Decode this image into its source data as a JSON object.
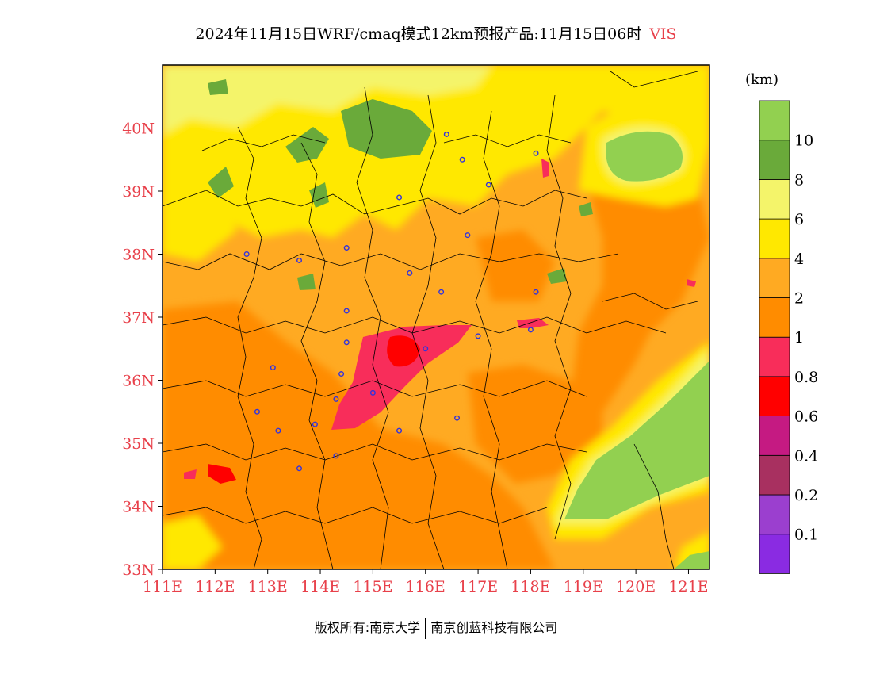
{
  "title": {
    "text": "2024年11月15日WRF/cmaq模式12km预报产品:11月15日06时",
    "variable": "VIS"
  },
  "colorbar": {
    "unit": "(km)",
    "colors": [
      "#8a2be2",
      "#9b3fcf",
      "#a83060",
      "#c51a82",
      "#ff0000",
      "#f82d5a",
      "#ff8c00",
      "#ffaa22",
      "#ffe800",
      "#f4f46a",
      "#6aaa3a",
      "#92d050"
    ],
    "tick_labels": [
      "0.1",
      "0.2",
      "0.4",
      "0.6",
      "0.8",
      "1",
      "2",
      "4",
      "6",
      "8",
      "10"
    ]
  },
  "axes": {
    "x_ticks": [
      "111E",
      "112E",
      "113E",
      "114E",
      "115E",
      "116E",
      "117E",
      "118E",
      "119E",
      "120E",
      "121E"
    ],
    "y_ticks": [
      "33N",
      "34N",
      "35N",
      "36N",
      "37N",
      "38N",
      "39N",
      "40N"
    ],
    "lon_range": [
      111,
      121.4
    ],
    "lat_range": [
      33,
      41
    ],
    "tick_color": "#e8404a"
  },
  "stations": [
    {
      "lon": 112.6,
      "lat": 38.0
    },
    {
      "lon": 113.6,
      "lat": 37.9
    },
    {
      "lon": 114.5,
      "lat": 38.1
    },
    {
      "lon": 115.5,
      "lat": 38.9
    },
    {
      "lon": 116.4,
      "lat": 39.9
    },
    {
      "lon": 116.7,
      "lat": 39.5
    },
    {
      "lon": 117.2,
      "lat": 39.1
    },
    {
      "lon": 116.8,
      "lat": 38.3
    },
    {
      "lon": 115.7,
      "lat": 37.7
    },
    {
      "lon": 116.3,
      "lat": 37.4
    },
    {
      "lon": 114.5,
      "lat": 37.1
    },
    {
      "lon": 114.5,
      "lat": 36.6
    },
    {
      "lon": 114.4,
      "lat": 36.1
    },
    {
      "lon": 114.3,
      "lat": 35.7
    },
    {
      "lon": 113.9,
      "lat": 35.3
    },
    {
      "lon": 113.2,
      "lat": 35.2
    },
    {
      "lon": 113.1,
      "lat": 36.2
    },
    {
      "lon": 112.8,
      "lat": 35.5
    },
    {
      "lon": 115.0,
      "lat": 35.8
    },
    {
      "lon": 115.5,
      "lat": 35.2
    },
    {
      "lon": 116.0,
      "lat": 36.5
    },
    {
      "lon": 117.0,
      "lat": 36.7
    },
    {
      "lon": 116.6,
      "lat": 35.4
    },
    {
      "lon": 118.0,
      "lat": 36.8
    },
    {
      "lon": 118.1,
      "lat": 37.4
    },
    {
      "lon": 118.1,
      "lat": 39.6
    },
    {
      "lon": 114.3,
      "lat": 34.8
    },
    {
      "lon": 113.6,
      "lat": 34.6
    }
  ],
  "credit": {
    "left": "版权所有:南京大学",
    "right": "南京创蓝科技有限公司"
  }
}
